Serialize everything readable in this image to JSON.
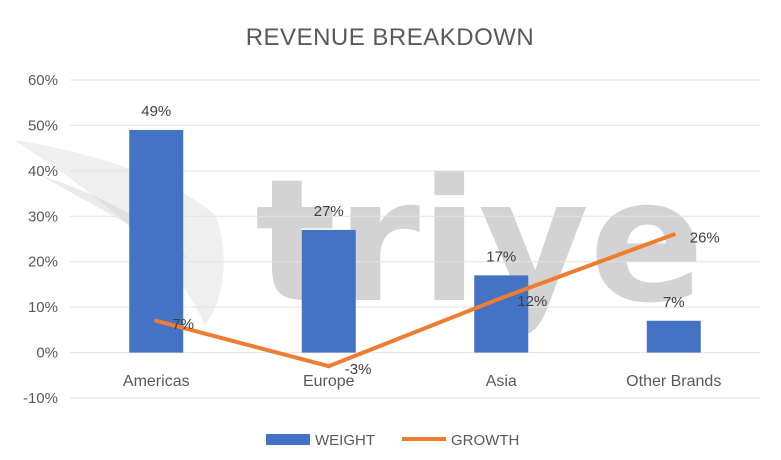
{
  "watermark": {
    "text": "triye"
  },
  "chart_data": {
    "type": "bar",
    "title": "REVENUE BREAKDOWN",
    "categories": [
      "Americas",
      "Europe",
      "Asia",
      "Other Brands"
    ],
    "series": [
      {
        "name": "WEIGHT",
        "type": "bar",
        "color": "#4472C4",
        "values": [
          49,
          27,
          17,
          7
        ],
        "labels": [
          "49%",
          "27%",
          "17%",
          "7%"
        ]
      },
      {
        "name": "GROWTH",
        "type": "line",
        "color": "#ED7D31",
        "values": [
          7,
          -3,
          12,
          26
        ],
        "labels": [
          "7%",
          "-3%",
          "12%",
          "26%"
        ]
      }
    ],
    "ylim": [
      -10,
      60
    ],
    "yticks": [
      -10,
      0,
      10,
      20,
      30,
      40,
      50,
      60
    ],
    "ytick_labels": [
      "-10%",
      "0%",
      "10%",
      "20%",
      "30%",
      "40%",
      "50%",
      "60%"
    ],
    "grid": true,
    "legend": "bottom"
  }
}
